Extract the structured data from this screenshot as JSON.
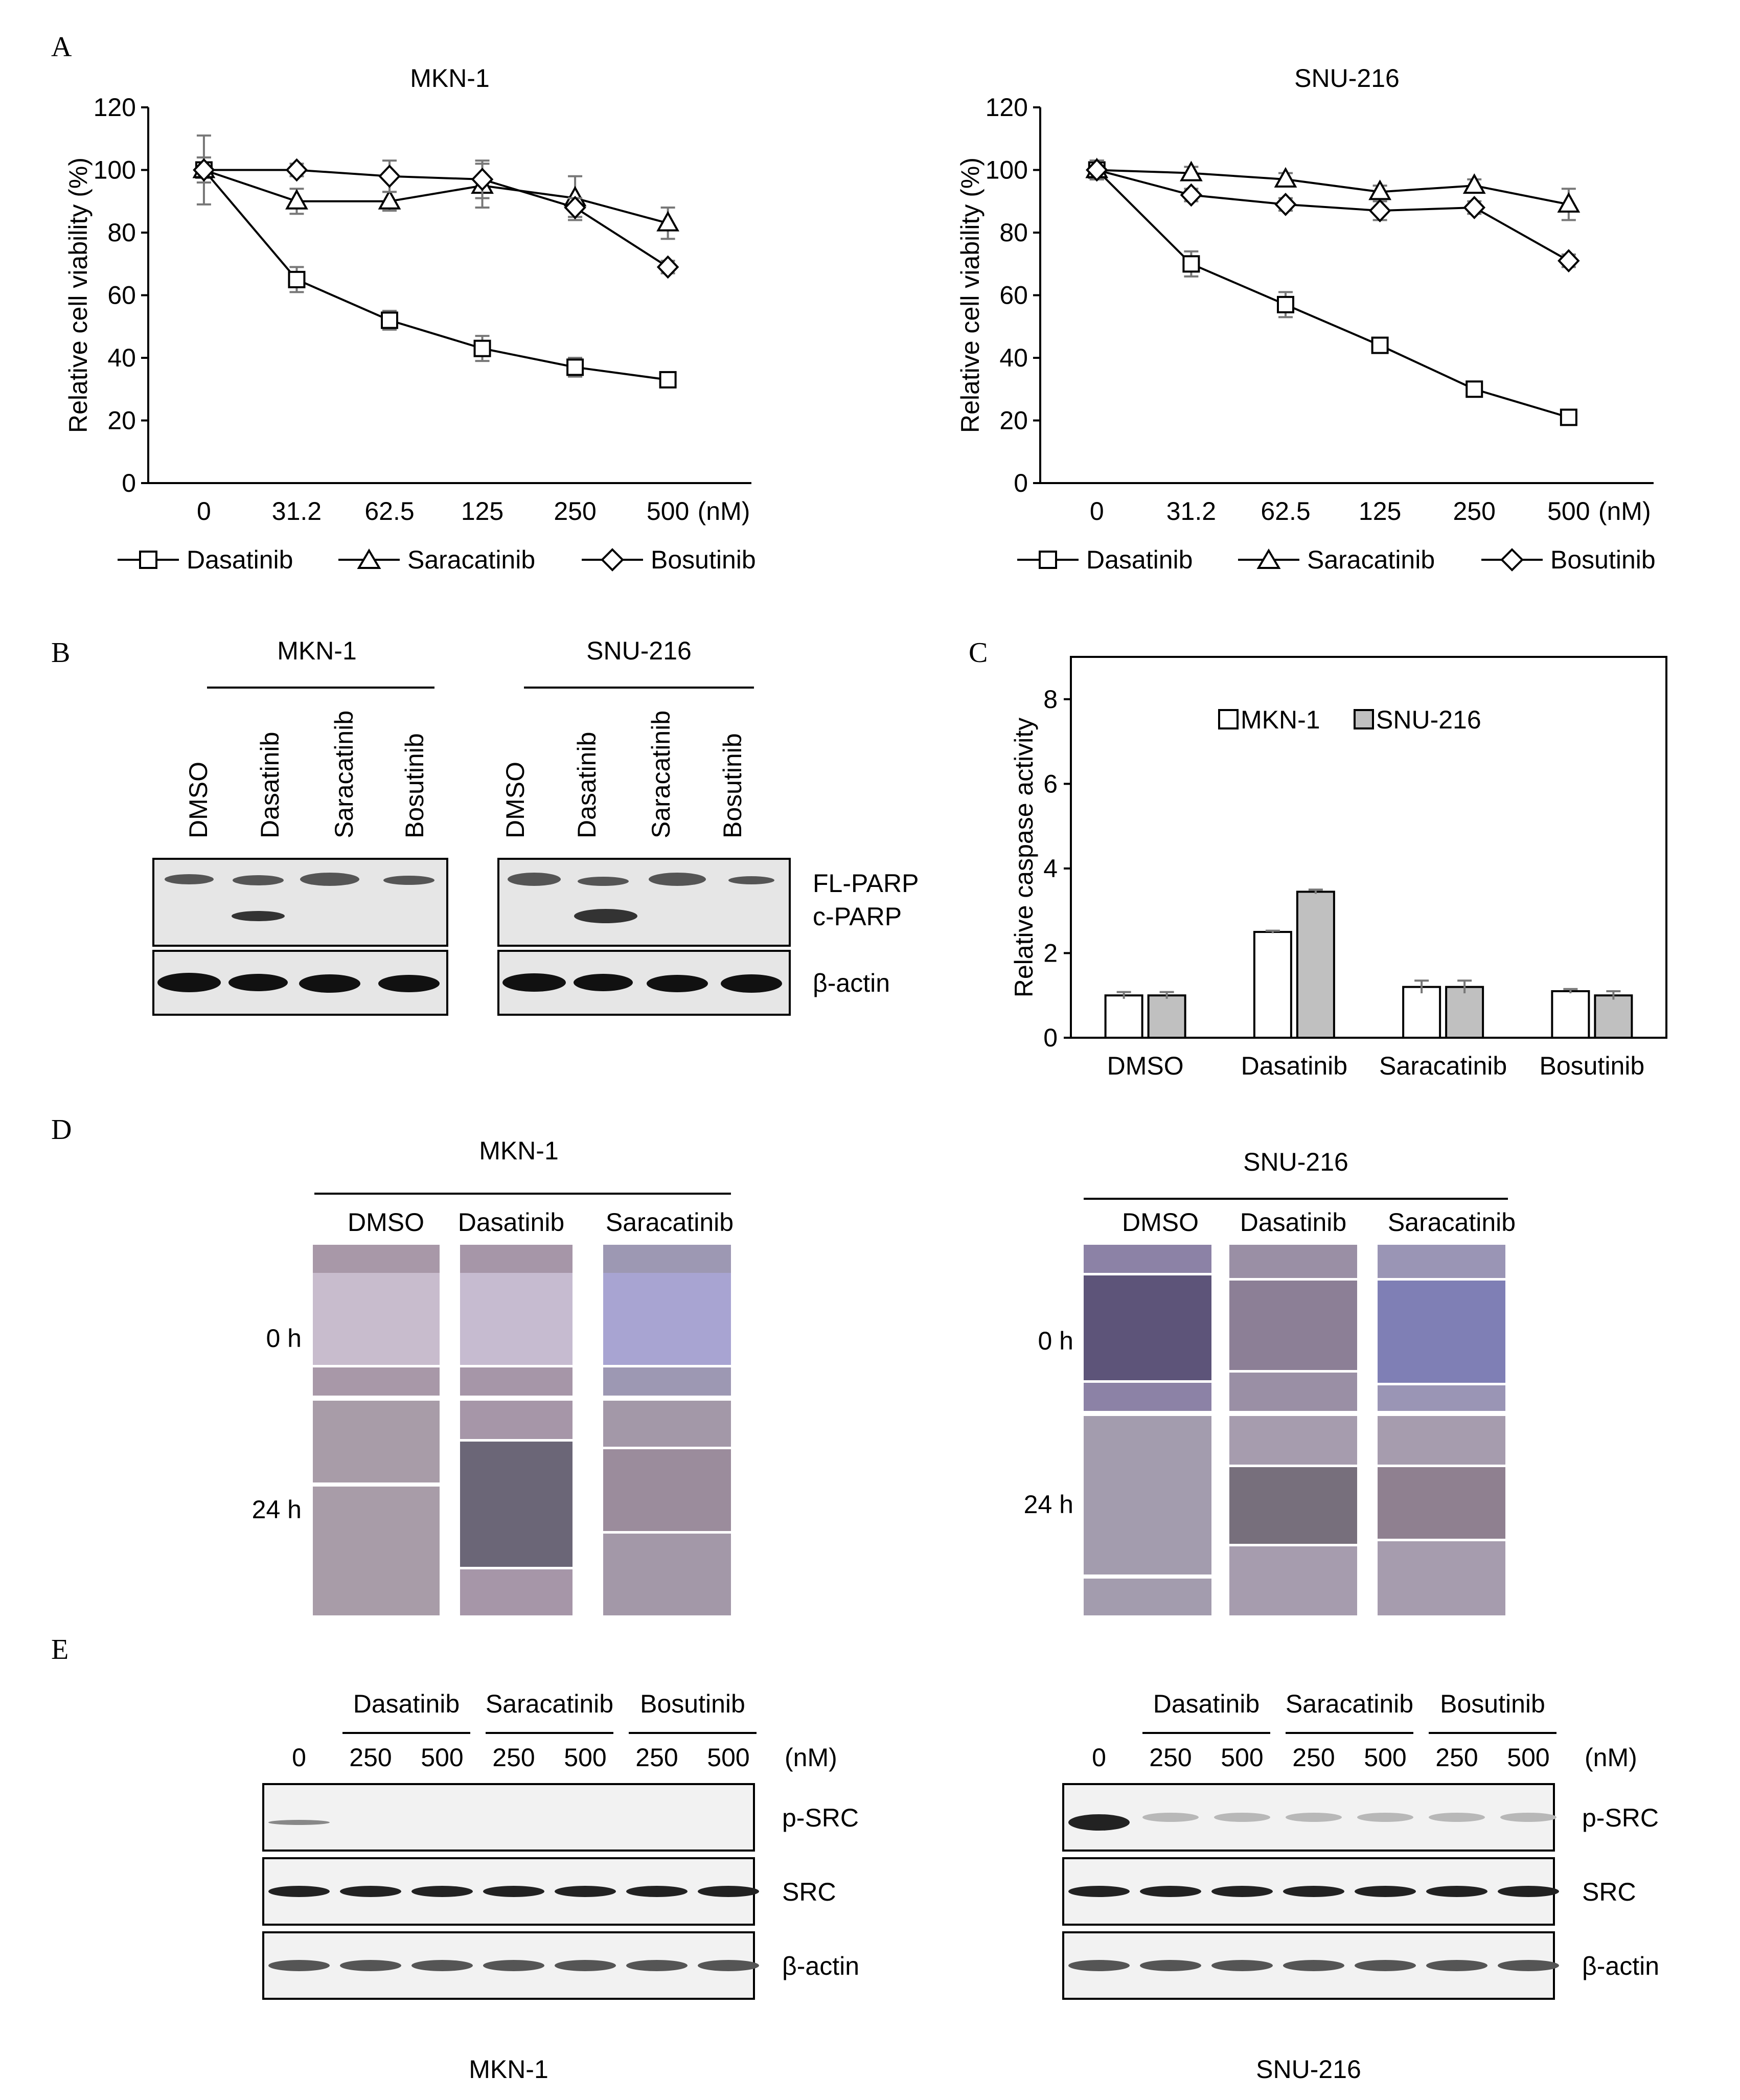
{
  "panel_letters": [
    "A",
    "B",
    "C",
    "D",
    "E"
  ],
  "legend_A": [
    "Dasatinib",
    "Saracatinib",
    "Bosutinib"
  ],
  "chart_data": [
    {
      "type": "line",
      "title": "MKN-1",
      "ylabel": "Relative cell viability (%)",
      "xunit": "(nM)",
      "categories": [
        "0",
        "31.2",
        "62.5",
        "125",
        "250",
        "500"
      ],
      "ylim": [
        0,
        120
      ],
      "yticks": [
        0,
        20,
        40,
        60,
        80,
        100,
        120
      ],
      "series": [
        {
          "name": "Dasatinib",
          "marker": "square",
          "values": [
            100,
            65,
            52,
            43,
            37,
            33
          ],
          "errors": [
            4,
            4,
            3,
            4,
            3,
            2
          ]
        },
        {
          "name": "Saracatinib",
          "marker": "triangle",
          "values": [
            100,
            90,
            90,
            95,
            91,
            83
          ],
          "errors": [
            4,
            4,
            3,
            7,
            7,
            5
          ]
        },
        {
          "name": "Bosutinib",
          "marker": "diamond",
          "values": [
            100,
            100,
            98,
            97,
            88,
            69
          ],
          "errors": [
            11,
            2,
            5,
            6,
            3,
            2
          ]
        }
      ]
    },
    {
      "type": "line",
      "title": "SNU-216",
      "ylabel": "Relative cell viability (%)",
      "xunit": "(nM)",
      "categories": [
        "0",
        "31.2",
        "62.5",
        "125",
        "250",
        "500"
      ],
      "ylim": [
        0,
        120
      ],
      "yticks": [
        0,
        20,
        40,
        60,
        80,
        100,
        120
      ],
      "series": [
        {
          "name": "Dasatinib",
          "marker": "square",
          "values": [
            100,
            70,
            57,
            44,
            30,
            21
          ],
          "errors": [
            3,
            4,
            4,
            2,
            1,
            1
          ]
        },
        {
          "name": "Saracatinib",
          "marker": "triangle",
          "values": [
            100,
            99,
            97,
            93,
            95,
            89
          ],
          "errors": [
            3,
            2,
            2,
            2,
            2,
            5
          ]
        },
        {
          "name": "Bosutinib",
          "marker": "diamond",
          "values": [
            100,
            92,
            89,
            87,
            88,
            71
          ],
          "errors": [
            3,
            2,
            2,
            3,
            2,
            2
          ]
        }
      ]
    },
    {
      "type": "bar",
      "ylabel": "Relative caspase activity",
      "categories": [
        "DMSO",
        "Dasatinib",
        "Saracatinib",
        "Bosutinib"
      ],
      "ylim": [
        0,
        9
      ],
      "yticks": [
        0,
        2,
        4,
        6,
        8
      ],
      "legend_position": "top",
      "series": [
        {
          "name": "MKN-1",
          "color": "#ffffff",
          "values": [
            1.0,
            2.5,
            1.2,
            1.1
          ],
          "errors": [
            0.08,
            0.03,
            0.15,
            0.05
          ]
        },
        {
          "name": "SNU-216",
          "color": "#c0c0c0",
          "values": [
            1.0,
            3.45,
            1.2,
            1.0
          ],
          "errors": [
            0.08,
            0.05,
            0.15,
            0.1
          ]
        }
      ]
    }
  ],
  "panel_B": {
    "cell_lines": [
      "MKN-1",
      "SNU-216"
    ],
    "lanes": [
      "DMSO",
      "Dasatinib",
      "Saracatinib",
      "Bosutinib"
    ],
    "row_labels": [
      "FL-PARP",
      "c-PARP",
      "β-actin"
    ]
  },
  "panel_D": {
    "cell_lines": [
      "MKN-1",
      "SNU-216"
    ],
    "columns": [
      "DMSO",
      "Dasatinib",
      "Saracatinib"
    ],
    "rows": [
      "0 h",
      "24 h"
    ]
  },
  "panel_E": {
    "cell_lines": [
      "MKN-1",
      "SNU-216"
    ],
    "drugs": [
      "Dasatinib",
      "Saracatinib",
      "Bosutinib"
    ],
    "doses": [
      "0",
      "250",
      "500",
      "250",
      "500",
      "250",
      "500"
    ],
    "unit": "(nM)",
    "row_labels": [
      "p-SRC",
      "SRC",
      "β-actin"
    ]
  }
}
